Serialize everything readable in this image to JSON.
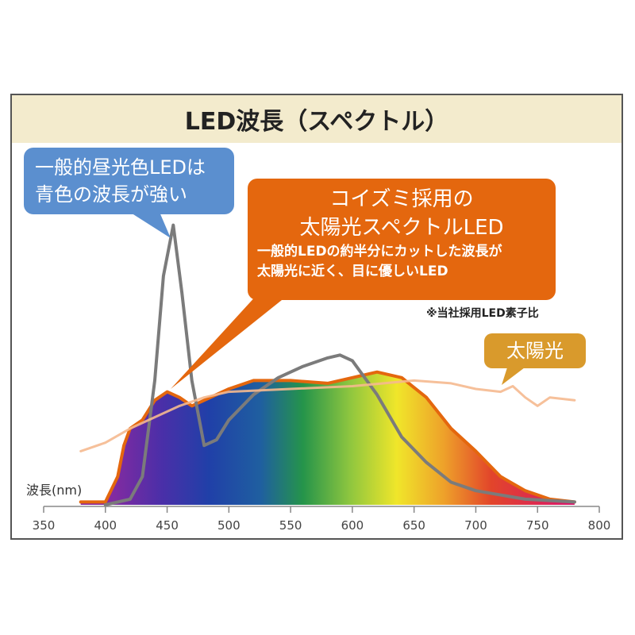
{
  "chart_data": {
    "type": "area",
    "title": "LED波長（スペクトル）",
    "xlabel": "波長(nm)",
    "ylabel": "",
    "xlim": [
      350,
      800
    ],
    "ylim": [
      0,
      1
    ],
    "xticks": [
      350,
      400,
      450,
      500,
      550,
      600,
      650,
      700,
      750,
      800
    ],
    "grid": false,
    "series": [
      {
        "key": "koizumi_led",
        "fill": "spectrum-gradient",
        "stroke": "#e4670e",
        "x": [
          380,
          400,
          410,
          415,
          420,
          430,
          440,
          450,
          460,
          470,
          480,
          500,
          520,
          550,
          580,
          600,
          620,
          640,
          660,
          680,
          700,
          720,
          740,
          760,
          780
        ],
        "y": [
          0.01,
          0.01,
          0.1,
          0.21,
          0.27,
          0.3,
          0.37,
          0.4,
          0.38,
          0.35,
          0.37,
          0.41,
          0.44,
          0.44,
          0.43,
          0.45,
          0.47,
          0.45,
          0.38,
          0.27,
          0.19,
          0.1,
          0.05,
          0.02,
          0.01
        ]
      },
      {
        "key": "general_led",
        "stroke": "#7b7b7b",
        "x": [
          400,
          420,
          430,
          440,
          447,
          455,
          462,
          470,
          480,
          490,
          500,
          520,
          540,
          560,
          580,
          590,
          600,
          620,
          640,
          660,
          680,
          700,
          740,
          780
        ],
        "y": [
          0.0,
          0.02,
          0.1,
          0.44,
          0.81,
          0.99,
          0.75,
          0.44,
          0.21,
          0.23,
          0.3,
          0.39,
          0.45,
          0.49,
          0.52,
          0.53,
          0.51,
          0.39,
          0.24,
          0.15,
          0.08,
          0.05,
          0.02,
          0.01
        ]
      },
      {
        "key": "sunlight",
        "stroke": "#f5b98f",
        "x": [
          380,
          400,
          420,
          440,
          460,
          480,
          500,
          550,
          600,
          650,
          680,
          700,
          720,
          730,
          740,
          750,
          760,
          780
        ],
        "y": [
          0.19,
          0.22,
          0.27,
          0.31,
          0.35,
          0.38,
          0.4,
          0.41,
          0.42,
          0.44,
          0.43,
          0.41,
          0.4,
          0.42,
          0.38,
          0.35,
          0.38,
          0.37
        ]
      }
    ],
    "annotations": {
      "general_led": [
        "一般的昼光色LEDは",
        "青色の波長が強い"
      ],
      "koizumi_title": [
        "コイズミ採用の",
        "太陽光スペクトルLED"
      ],
      "koizumi_desc": [
        "一般的LEDの約半分にカットした波長が",
        "太陽光に近く、目に優しいLED"
      ],
      "note": "※当社採用LED素子比",
      "sunlight": "太陽光"
    },
    "colors": {
      "general_callout": "#5b8fcf",
      "koizumi_callout": "#e4670e",
      "sunlight_callout": "#d99a2c",
      "title_bg": "#f3ebcd"
    }
  }
}
